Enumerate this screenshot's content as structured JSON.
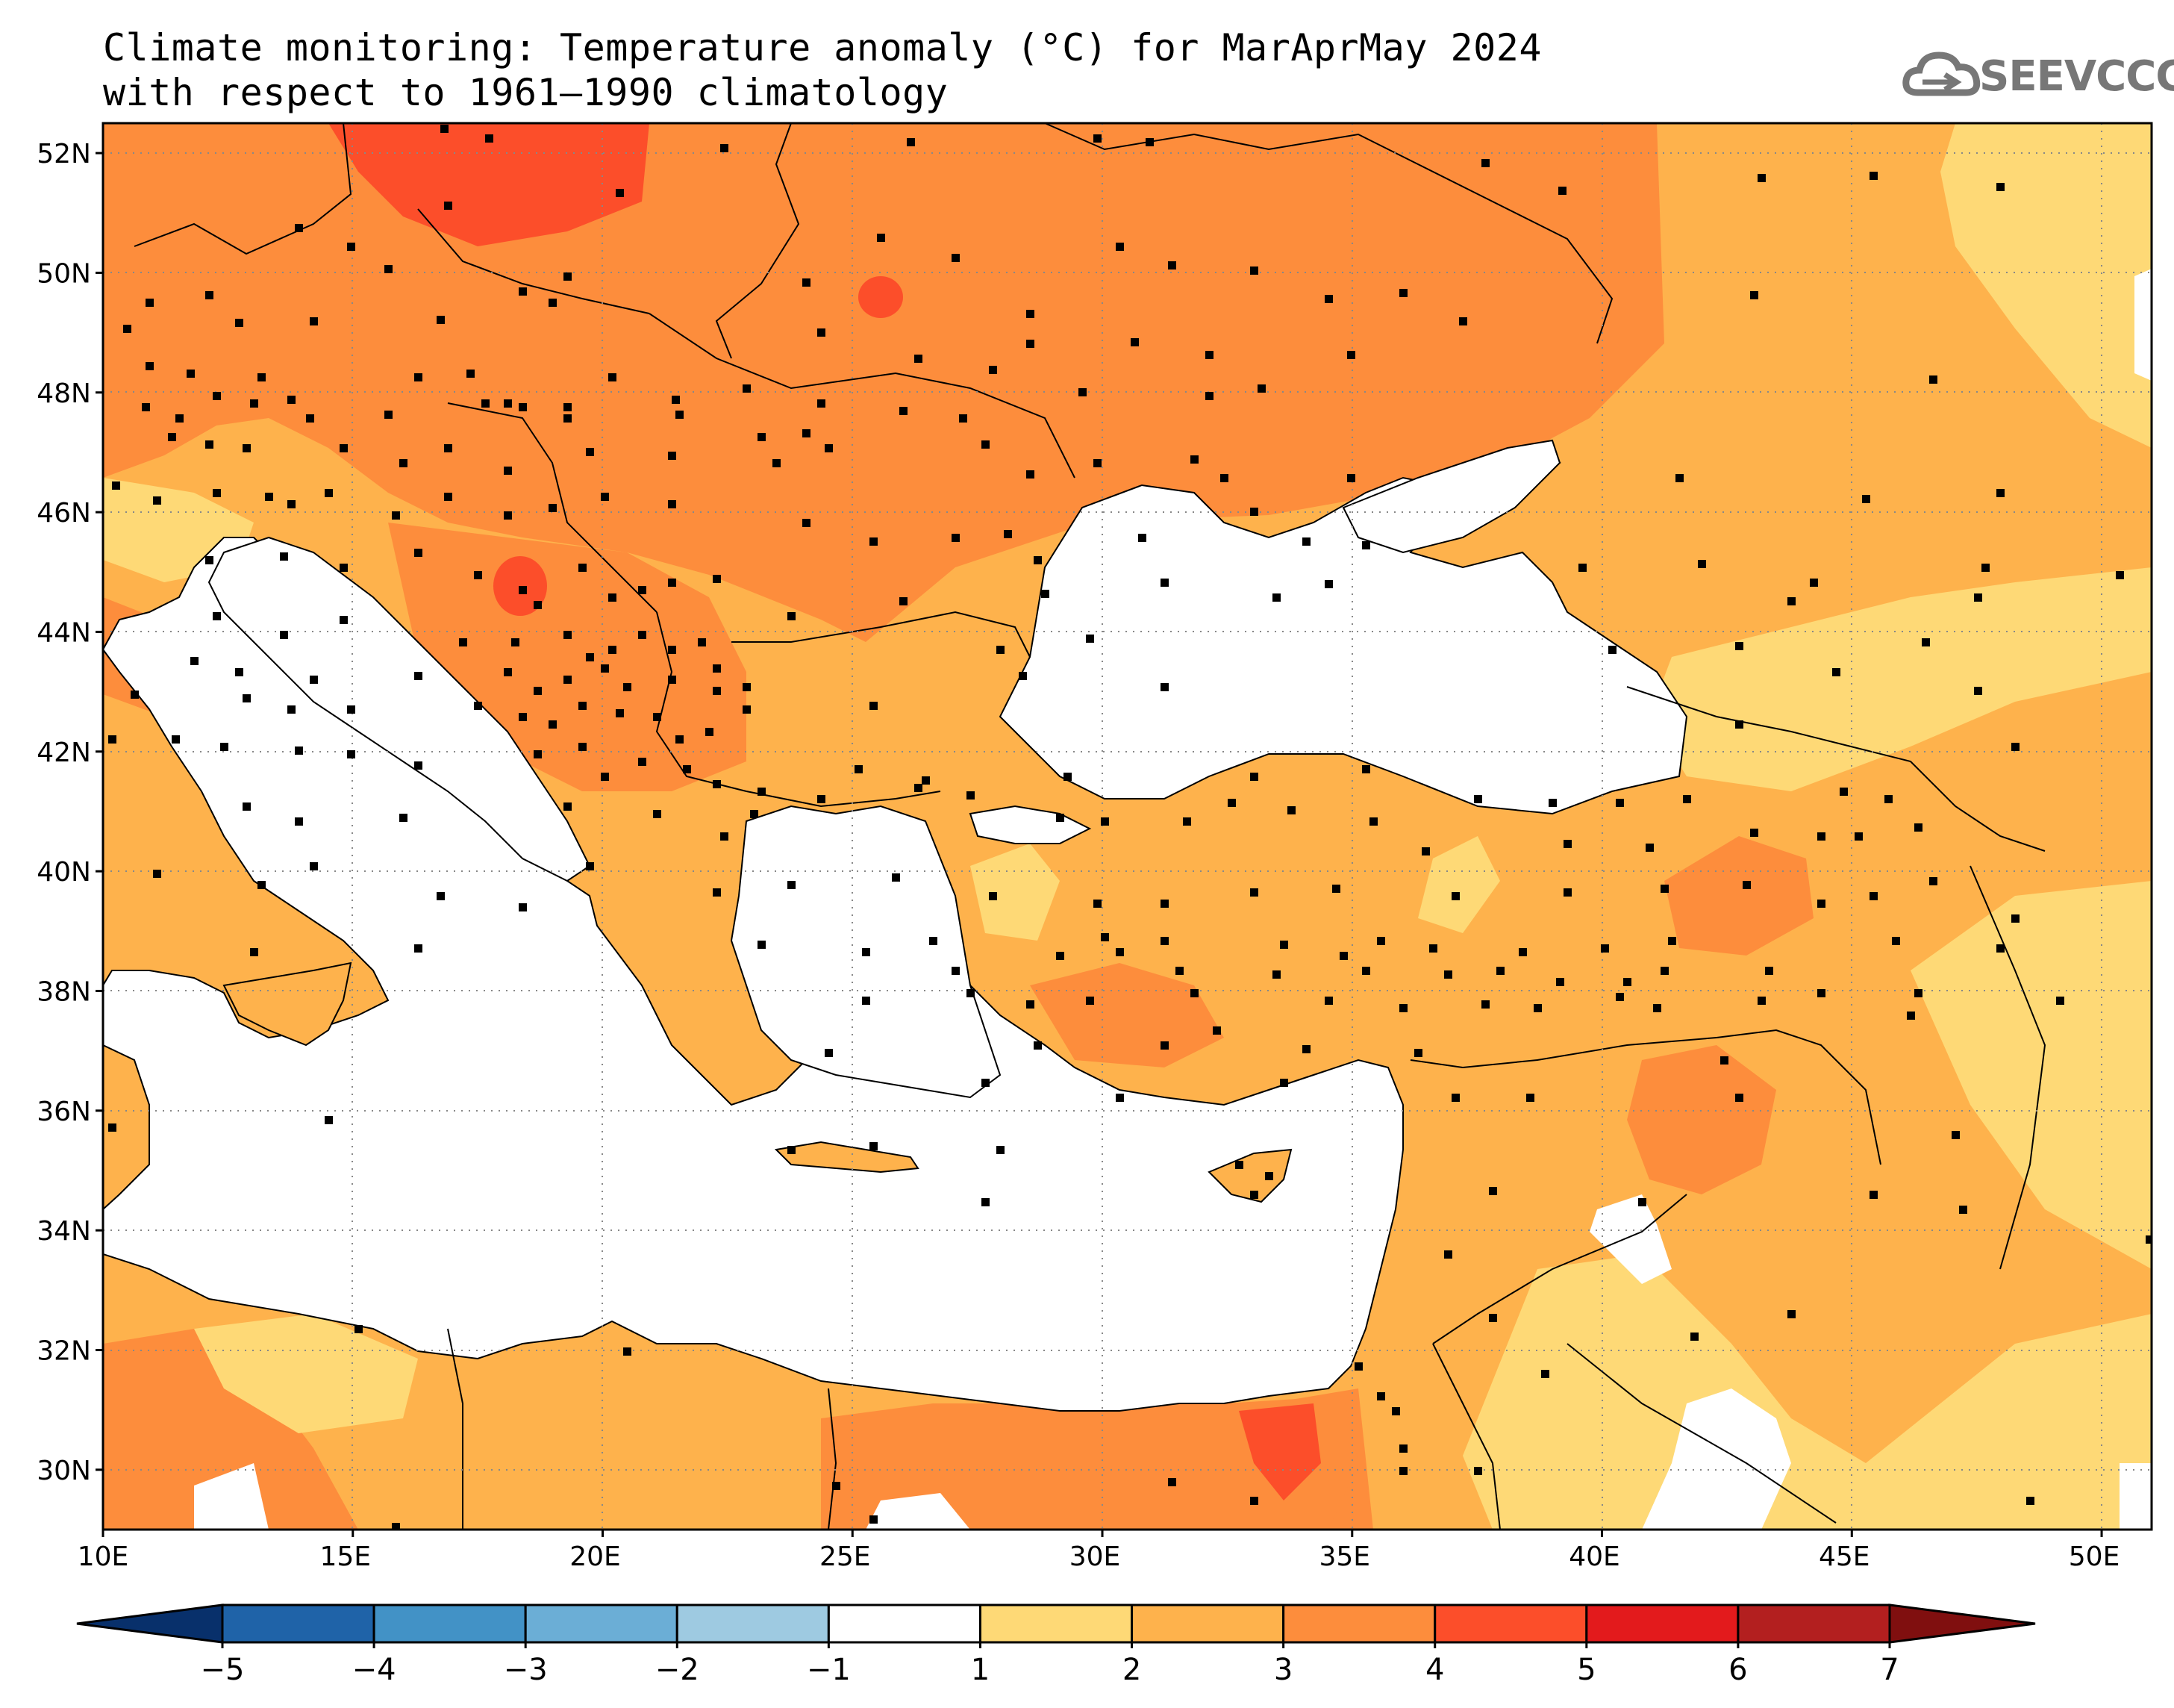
{
  "title": {
    "line1": "Climate monitoring: Temperature anomaly (°C) for MarAprMay 2024",
    "line2": "with respect to 1961–1990 climatology"
  },
  "logo": {
    "text": "SEEVCCC",
    "icon": "cloud-icon"
  },
  "map": {
    "lon_range": [
      10,
      51
    ],
    "lat_range": [
      29,
      52.5
    ],
    "lon_ticks": [
      "10E",
      "15E",
      "20E",
      "25E",
      "30E",
      "35E",
      "40E",
      "45E",
      "50E"
    ],
    "lat_ticks": [
      "30N",
      "32N",
      "34N",
      "36N",
      "38N",
      "40N",
      "42N",
      "44N",
      "46N",
      "48N",
      "50N",
      "52N"
    ],
    "gridlines": true
  },
  "colorbar": {
    "labels": [
      "−5",
      "−4",
      "−3",
      "−2",
      "−1",
      "1",
      "2",
      "3",
      "4",
      "5",
      "6",
      "7"
    ],
    "colors": [
      "#08306b",
      "#1f63a8",
      "#4292c6",
      "#6baed6",
      "#9ecae1",
      "#ffffff",
      "#fed976",
      "#feb24c",
      "#fd8d3c",
      "#fc4e2a",
      "#e31a1c",
      "#b31f1f",
      "#800f0f"
    ]
  },
  "fill_colors": {
    "c12": "#fed976",
    "c23": "#feb24c",
    "c34": "#fd8d3c",
    "c45": "#fc4e2a"
  }
}
